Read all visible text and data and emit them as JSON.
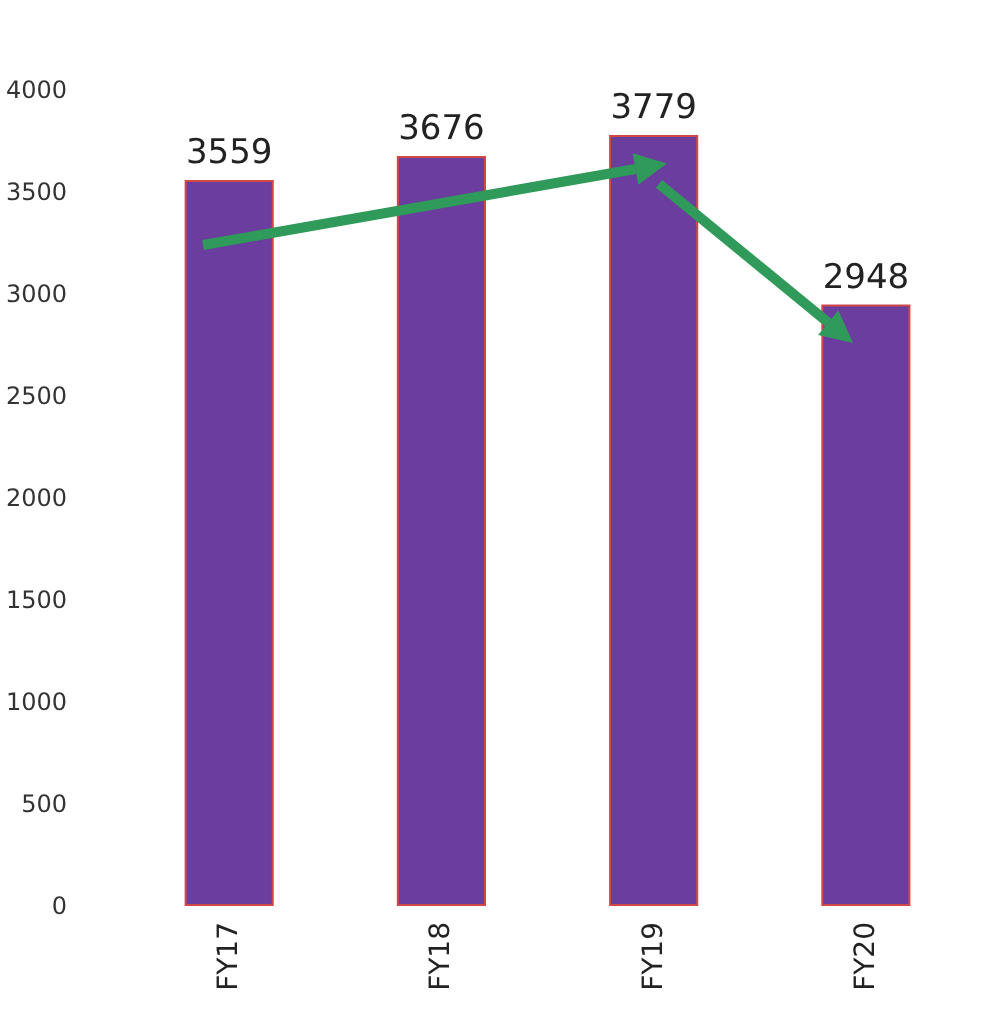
{
  "chart_data": {
    "type": "bar",
    "categories": [
      "FY17",
      "FY18",
      "FY19",
      "FY20"
    ],
    "values": [
      3559,
      3676,
      3779,
      2948
    ],
    "color": "#6a3d9e",
    "ylim": [
      0,
      4000
    ],
    "yticks": [
      0,
      500,
      1000,
      1500,
      2000,
      2500,
      3000,
      3500,
      4000
    ],
    "grid": false,
    "data_labels": true
  }
}
